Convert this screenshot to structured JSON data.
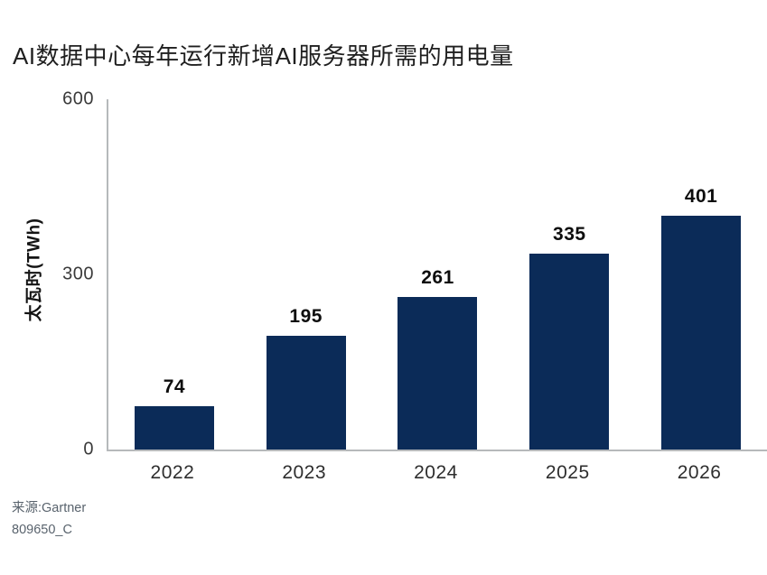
{
  "chart_data": {
    "type": "bar",
    "title": "AI数据中心每年运行新增AI服务器所需的用电量",
    "categories": [
      "2022",
      "2023",
      "2024",
      "2025",
      "2026"
    ],
    "values": [
      74,
      195,
      261,
      335,
      401
    ],
    "xlabel": "",
    "ylabel": "太瓦时(TWh)",
    "ylim": [
      0,
      600
    ],
    "yticks": [
      0,
      300,
      600
    ],
    "bar_color": "#0b2b58",
    "axis_color": "#b6b9bb",
    "grid": false,
    "legend_position": "none"
  },
  "source": {
    "line1": "来源:Gartner",
    "line2": "809650_C"
  }
}
